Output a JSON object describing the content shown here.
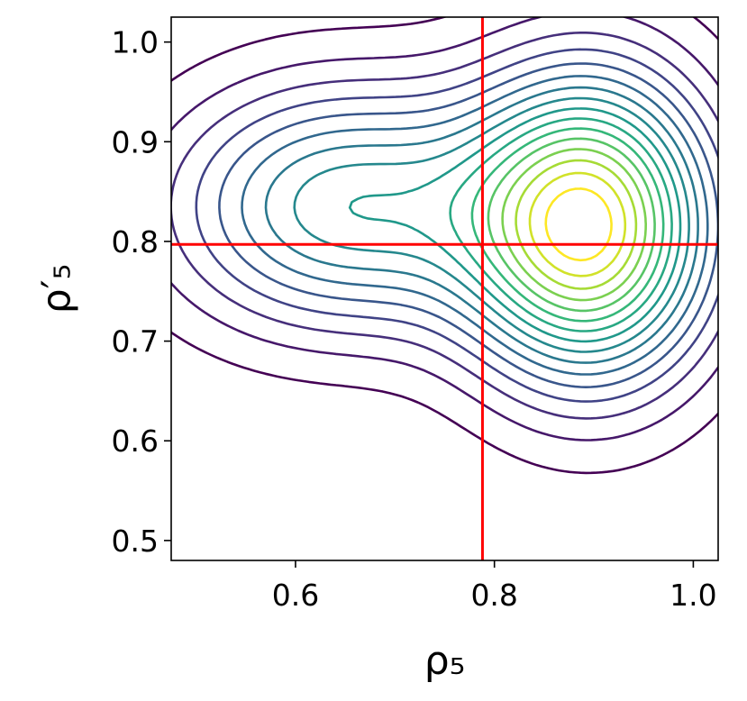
{
  "chart_data": {
    "type": "contour",
    "xlabel": "ρ₅",
    "ylabel": "ρ′₅",
    "xlim": [
      0.475,
      1.025
    ],
    "ylim": [
      0.48,
      1.025
    ],
    "xticks": [
      "0.6",
      "0.8",
      "1.0"
    ],
    "xtick_values": [
      0.6,
      0.8,
      1.0
    ],
    "yticks": [
      "0.5",
      "0.6",
      "0.7",
      "0.8",
      "0.9",
      "1.0"
    ],
    "ytick_values": [
      0.5,
      0.6,
      0.7,
      0.8,
      0.9,
      1.0
    ],
    "colormap": "viridis",
    "n_levels": 16,
    "density_peaks": [
      {
        "x": 0.895,
        "y": 0.815,
        "weight": 1.0,
        "sx": 0.085,
        "sy": 0.105
      },
      {
        "x": 0.65,
        "y": 0.835,
        "weight": 0.55,
        "sx": 0.12,
        "sy": 0.085
      }
    ],
    "reference_lines": {
      "color": "#ff0000",
      "vertical_x": 0.788,
      "horizontal_y": 0.797
    },
    "grid": false,
    "legend": "none"
  }
}
